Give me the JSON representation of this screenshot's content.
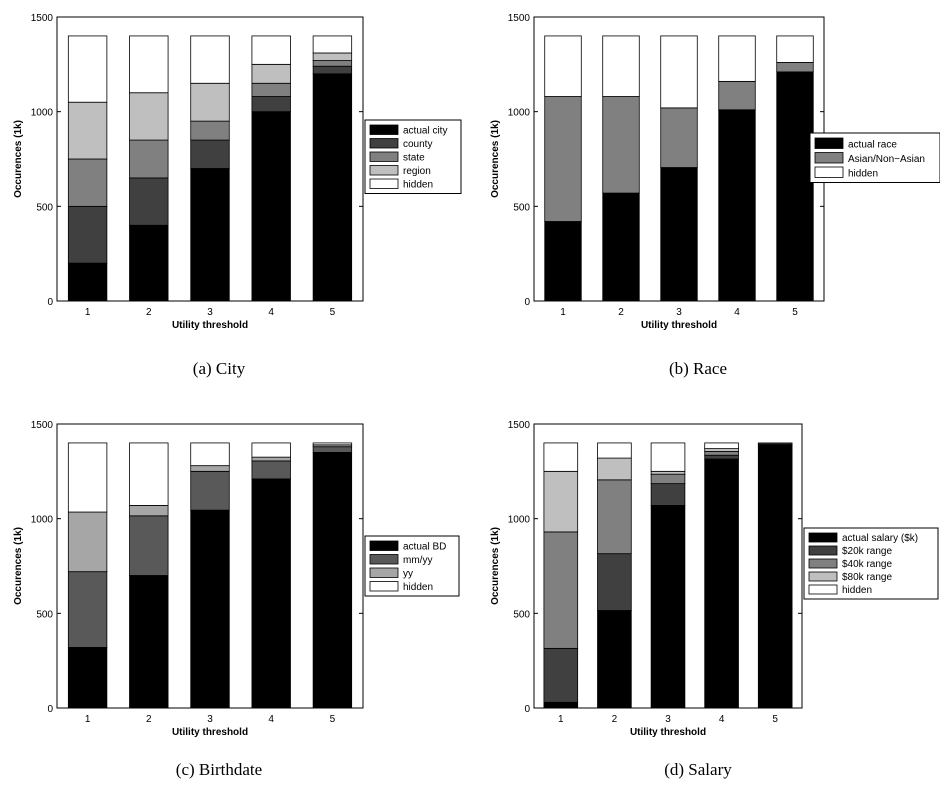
{
  "chart_data": [
    {
      "type": "bar",
      "stacked": true,
      "caption": "(a) City",
      "xlabel": "Utility threshold",
      "ylabel": "Occurences (1k)",
      "categories": [
        "1",
        "2",
        "3",
        "4",
        "5"
      ],
      "yticks": [
        "0",
        "500",
        "1000",
        "1500"
      ],
      "ylim": [
        0,
        1500
      ],
      "legend_position": "right",
      "series": [
        {
          "name": "actual city",
          "color": "#000000",
          "values": [
            200,
            400,
            700,
            1000,
            1200
          ]
        },
        {
          "name": "county",
          "color": "#404040",
          "values": [
            300,
            250,
            150,
            80,
            40
          ]
        },
        {
          "name": "state",
          "color": "#808080",
          "values": [
            250,
            200,
            100,
            70,
            30
          ]
        },
        {
          "name": "region",
          "color": "#bfbfbf",
          "values": [
            300,
            250,
            200,
            100,
            40
          ]
        },
        {
          "name": "hidden",
          "color": "#ffffff",
          "values": [
            350,
            300,
            250,
            150,
            90
          ]
        }
      ]
    },
    {
      "type": "bar",
      "stacked": true,
      "caption": "(b) Race",
      "xlabel": "Utility threshold",
      "ylabel": "Occurences (1k)",
      "categories": [
        "1",
        "2",
        "3",
        "4",
        "5"
      ],
      "yticks": [
        "0",
        "500",
        "1000",
        "1500"
      ],
      "ylim": [
        0,
        1500
      ],
      "legend_position": "right",
      "series": [
        {
          "name": "actual race",
          "color": "#000000",
          "values": [
            420,
            570,
            705,
            1010,
            1210
          ]
        },
        {
          "name": "Asian/Non−Asian",
          "color": "#808080",
          "values": [
            660,
            510,
            315,
            150,
            50
          ]
        },
        {
          "name": "hidden",
          "color": "#ffffff",
          "values": [
            320,
            320,
            380,
            240,
            140
          ]
        }
      ]
    },
    {
      "type": "bar",
      "stacked": true,
      "caption": "(c) Birthdate",
      "xlabel": "Utility threshold",
      "ylabel": "Occurences (1k)",
      "categories": [
        "1",
        "2",
        "3",
        "4",
        "5"
      ],
      "yticks": [
        "0",
        "500",
        "1000",
        "1500"
      ],
      "ylim": [
        0,
        1500
      ],
      "legend_position": "right",
      "series": [
        {
          "name": "actual BD",
          "color": "#000000",
          "values": [
            320,
            700,
            1045,
            1210,
            1350
          ]
        },
        {
          "name": "mm/yy",
          "color": "#595959",
          "values": [
            400,
            315,
            205,
            95,
            30
          ]
        },
        {
          "name": "yy",
          "color": "#a6a6a6",
          "values": [
            315,
            55,
            30,
            20,
            10
          ]
        },
        {
          "name": "hidden",
          "color": "#ffffff",
          "values": [
            365,
            330,
            120,
            75,
            10
          ]
        }
      ]
    },
    {
      "type": "bar",
      "stacked": true,
      "caption": "(d) Salary",
      "xlabel": "Utility threshold",
      "ylabel": "Occurences (1k)",
      "categories": [
        "1",
        "2",
        "3",
        "4",
        "5"
      ],
      "yticks": [
        "0",
        "500",
        "1000",
        "1500"
      ],
      "ylim": [
        0,
        1500
      ],
      "legend_position": "right",
      "series": [
        {
          "name": "actual salary ($k)",
          "color": "#000000",
          "values": [
            30,
            515,
            1070,
            1315,
            1385
          ]
        },
        {
          "name": "$20k range",
          "color": "#404040",
          "values": [
            285,
            300,
            115,
            20,
            5
          ]
        },
        {
          "name": "$40k range",
          "color": "#808080",
          "values": [
            615,
            390,
            50,
            20,
            5
          ]
        },
        {
          "name": "$80k range",
          "color": "#bfbfbf",
          "values": [
            320,
            115,
            15,
            15,
            0
          ]
        },
        {
          "name": "hidden",
          "color": "#ffffff",
          "values": [
            150,
            80,
            150,
            30,
            5
          ]
        }
      ]
    }
  ]
}
